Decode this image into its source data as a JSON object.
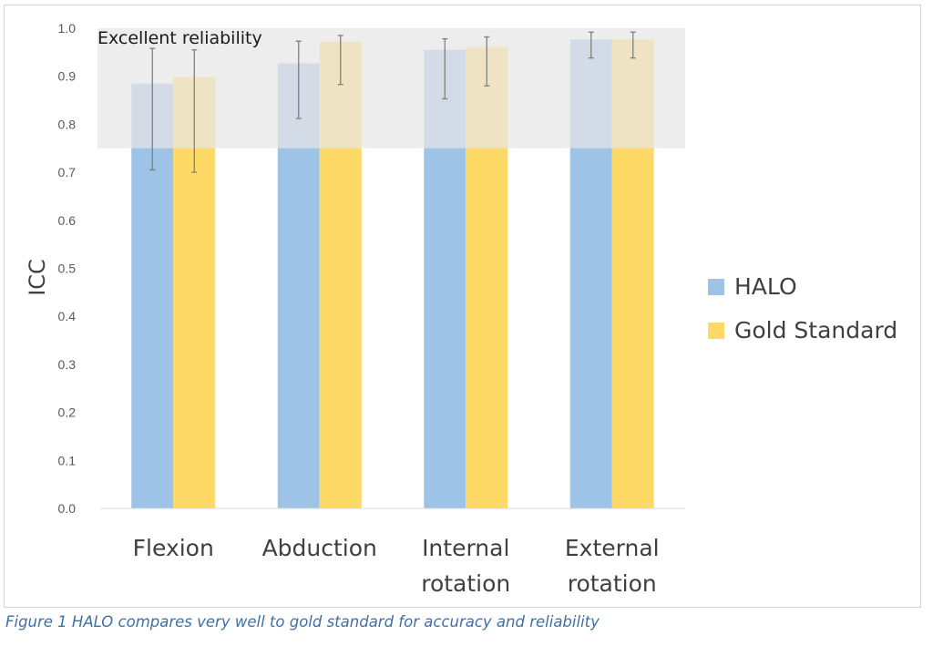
{
  "caption": "Figure 1 HALO compares very well to gold standard for accuracy and reliability",
  "colors": {
    "halo": "#9dc3e6",
    "gold_standard": "#ffd966",
    "band": "#e7e6e6",
    "error_bar": "#7f7f7f",
    "caption": "#3f6fa6"
  },
  "chart_data": {
    "type": "bar",
    "ylabel": "ICC",
    "xlabel": "",
    "ylim": [
      0.0,
      1.0
    ],
    "yticks": [
      "0.0",
      "0.1",
      "0.2",
      "0.3",
      "0.4",
      "0.5",
      "0.6",
      "0.7",
      "0.8",
      "0.9",
      "1.0"
    ],
    "categories": [
      [
        "Flexion"
      ],
      [
        "Abduction"
      ],
      [
        "Internal",
        "rotation"
      ],
      [
        "External",
        "rotation"
      ]
    ],
    "series": [
      {
        "name": "HALO",
        "color": "#9dc3e6",
        "values": [
          0.885,
          0.927,
          0.955,
          0.977
        ],
        "error_low": [
          0.705,
          0.812,
          0.853,
          0.938
        ],
        "error_high": [
          0.958,
          0.973,
          0.978,
          0.992
        ]
      },
      {
        "name": "Gold Standard",
        "color": "#ffd966",
        "values": [
          0.898,
          0.972,
          0.961,
          0.977
        ],
        "error_low": [
          0.7,
          0.883,
          0.88,
          0.938
        ],
        "error_high": [
          0.955,
          0.985,
          0.982,
          0.992
        ]
      }
    ],
    "annotations": [
      {
        "text": "Excellent reliability",
        "y_from": 0.75,
        "y_to": 1.0
      }
    ],
    "legend_position": "right",
    "grid": false
  }
}
